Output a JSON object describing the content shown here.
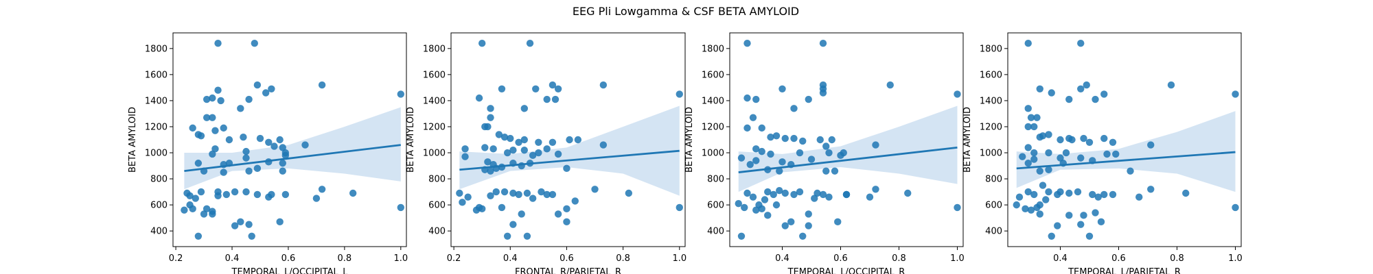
{
  "title": "EEG Pli Lowgamma & CSF BETA AMYLOID",
  "colors": {
    "points": "#1f77b4",
    "line": "#1f77b4",
    "band": "#c6dbef"
  },
  "chart_data": [
    {
      "type": "scatter",
      "xlabel": "TEMPORAL_L/OCCIPITAL_L",
      "ylabel": "BETA AMYLOID",
      "xlim": [
        0.19,
        1.02
      ],
      "ylim": [
        280,
        1920
      ],
      "xticks": [
        "0.2",
        "0.4",
        "0.6",
        "0.8",
        "1.0"
      ],
      "yticks": [
        "400",
        "600",
        "800",
        "1000",
        "1200",
        "1400",
        "1600",
        "1800"
      ],
      "regression": {
        "x": [
          0.23,
          1.0
        ],
        "y": [
          860,
          1060
        ]
      },
      "ci_band": {
        "x": [
          0.23,
          0.4,
          0.6,
          0.8,
          1.0
        ],
        "upper": [
          1000,
          1000,
          1060,
          1200,
          1350
        ],
        "lower": [
          720,
          860,
          880,
          840,
          780
        ]
      },
      "points": [
        [
          0.35,
          1840
        ],
        [
          0.48,
          1840
        ],
        [
          0.49,
          1520
        ],
        [
          0.52,
          1460
        ],
        [
          0.54,
          1490
        ],
        [
          0.72,
          1520
        ],
        [
          1.0,
          1450
        ],
        [
          0.31,
          1410
        ],
        [
          0.33,
          1420
        ],
        [
          0.35,
          1480
        ],
        [
          0.36,
          1400
        ],
        [
          0.43,
          1340
        ],
        [
          0.46,
          1410
        ],
        [
          0.26,
          1190
        ],
        [
          0.29,
          1130
        ],
        [
          0.31,
          1270
        ],
        [
          0.33,
          1270
        ],
        [
          0.34,
          1170
        ],
        [
          0.28,
          1140
        ],
        [
          0.37,
          1190
        ],
        [
          0.39,
          1100
        ],
        [
          0.44,
          1120
        ],
        [
          0.45,
          1010
        ],
        [
          0.5,
          1110
        ],
        [
          0.53,
          1080
        ],
        [
          0.55,
          1050
        ],
        [
          0.57,
          1100
        ],
        [
          0.58,
          1040
        ],
        [
          0.59,
          1000
        ],
        [
          0.66,
          1060
        ],
        [
          0.33,
          990
        ],
        [
          0.34,
          1030
        ],
        [
          0.37,
          910
        ],
        [
          0.39,
          920
        ],
        [
          0.45,
          960
        ],
        [
          0.49,
          880
        ],
        [
          0.53,
          930
        ],
        [
          0.58,
          920
        ],
        [
          0.59,
          980
        ],
        [
          0.28,
          920
        ],
        [
          0.3,
          860
        ],
        [
          0.58,
          860
        ],
        [
          0.37,
          850
        ],
        [
          0.24,
          690
        ],
        [
          0.25,
          670
        ],
        [
          0.27,
          650
        ],
        [
          0.29,
          700
        ],
        [
          0.31,
          570
        ],
        [
          0.33,
          550
        ],
        [
          0.33,
          530
        ],
        [
          0.35,
          700
        ],
        [
          0.38,
          680
        ],
        [
          0.41,
          700
        ],
        [
          0.45,
          700
        ],
        [
          0.46,
          450
        ],
        [
          0.43,
          470
        ],
        [
          0.47,
          360
        ],
        [
          0.53,
          660
        ],
        [
          0.54,
          680
        ],
        [
          0.57,
          470
        ],
        [
          0.59,
          680
        ],
        [
          0.7,
          650
        ],
        [
          0.72,
          720
        ],
        [
          0.83,
          690
        ],
        [
          1.0,
          580
        ],
        [
          0.23,
          560
        ],
        [
          0.25,
          600
        ],
        [
          0.28,
          360
        ],
        [
          0.3,
          530
        ],
        [
          0.26,
          570
        ],
        [
          0.41,
          440
        ],
        [
          0.35,
          670
        ],
        [
          0.46,
          860
        ],
        [
          0.49,
          680
        ]
      ]
    },
    {
      "type": "scatter",
      "xlabel": "FRONTAL_R/PARIETAL_R",
      "ylabel": "BETA AMYLOID",
      "xlim": [
        0.19,
        1.02
      ],
      "ylim": [
        280,
        1920
      ],
      "xticks": [
        "0.2",
        "0.4",
        "0.6",
        "0.8",
        "1.0"
      ],
      "yticks": [
        "400",
        "600",
        "800",
        "1000",
        "1200",
        "1400",
        "1600",
        "1800"
      ],
      "regression": {
        "x": [
          0.22,
          1.0
        ],
        "y": [
          870,
          1015
        ]
      },
      "ci_band": {
        "x": [
          0.22,
          0.4,
          0.6,
          0.8,
          1.0
        ],
        "upper": [
          1010,
          990,
          1040,
          1200,
          1360
        ],
        "lower": [
          720,
          860,
          890,
          840,
          670
        ]
      },
      "points": [
        [
          0.3,
          1840
        ],
        [
          0.47,
          1840
        ],
        [
          0.73,
          1520
        ],
        [
          1.0,
          1450
        ],
        [
          0.49,
          1490
        ],
        [
          0.55,
          1520
        ],
        [
          0.57,
          1490
        ],
        [
          0.29,
          1420
        ],
        [
          0.37,
          1490
        ],
        [
          0.53,
          1410
        ],
        [
          0.56,
          1410
        ],
        [
          0.45,
          1340
        ],
        [
          0.33,
          1340
        ],
        [
          0.33,
          1270
        ],
        [
          0.31,
          1200
        ],
        [
          0.32,
          1200
        ],
        [
          0.36,
          1140
        ],
        [
          0.38,
          1120
        ],
        [
          0.4,
          1110
        ],
        [
          0.43,
          1080
        ],
        [
          0.45,
          1100
        ],
        [
          0.5,
          1080
        ],
        [
          0.55,
          1080
        ],
        [
          0.61,
          1100
        ],
        [
          0.64,
          1100
        ],
        [
          0.73,
          1060
        ],
        [
          0.24,
          1030
        ],
        [
          0.31,
          1040
        ],
        [
          0.34,
          1030
        ],
        [
          0.39,
          1000
        ],
        [
          0.41,
          1020
        ],
        [
          0.45,
          1020
        ],
        [
          0.48,
          980
        ],
        [
          0.5,
          1000
        ],
        [
          0.53,
          1030
        ],
        [
          0.57,
          990
        ],
        [
          0.24,
          970
        ],
        [
          0.32,
          930
        ],
        [
          0.34,
          910
        ],
        [
          0.37,
          890
        ],
        [
          0.41,
          920
        ],
        [
          0.47,
          920
        ],
        [
          0.31,
          870
        ],
        [
          0.33,
          860
        ],
        [
          0.35,
          880
        ],
        [
          0.44,
          900
        ],
        [
          0.6,
          880
        ],
        [
          0.22,
          690
        ],
        [
          0.23,
          620
        ],
        [
          0.25,
          660
        ],
        [
          0.28,
          560
        ],
        [
          0.3,
          570
        ],
        [
          0.33,
          670
        ],
        [
          0.35,
          700
        ],
        [
          0.38,
          700
        ],
        [
          0.41,
          690
        ],
        [
          0.43,
          680
        ],
        [
          0.46,
          690
        ],
        [
          0.48,
          650
        ],
        [
          0.51,
          700
        ],
        [
          0.55,
          680
        ],
        [
          0.57,
          530
        ],
        [
          0.6,
          470
        ],
        [
          0.63,
          630
        ],
        [
          0.7,
          720
        ],
        [
          0.82,
          690
        ],
        [
          1.0,
          580
        ],
        [
          0.29,
          580
        ],
        [
          0.37,
          580
        ],
        [
          0.39,
          360
        ],
        [
          0.41,
          450
        ],
        [
          0.44,
          530
        ],
        [
          0.46,
          360
        ],
        [
          0.53,
          680
        ],
        [
          0.6,
          570
        ]
      ]
    },
    {
      "type": "scatter",
      "xlabel": "TEMPORAL_L/OCCIPITAL_R",
      "ylabel": "BETA AMYLOID",
      "xlim": [
        0.22,
        1.02
      ],
      "ylim": [
        280,
        1920
      ],
      "xticks": [
        "0.4",
        "0.6",
        "0.8",
        "1.0"
      ],
      "yticks": [
        "400",
        "600",
        "800",
        "1000",
        "1200",
        "1400",
        "1600",
        "1800"
      ],
      "regression": {
        "x": [
          0.25,
          1.0
        ],
        "y": [
          850,
          1040
        ]
      },
      "ci_band": {
        "x": [
          0.25,
          0.4,
          0.6,
          0.8,
          1.0
        ],
        "upper": [
          1010,
          990,
          1050,
          1200,
          1360
        ],
        "lower": [
          700,
          850,
          890,
          840,
          760
        ]
      },
      "points": [
        [
          0.28,
          1840
        ],
        [
          0.54,
          1840
        ],
        [
          0.4,
          1490
        ],
        [
          0.54,
          1520
        ],
        [
          0.54,
          1490
        ],
        [
          0.77,
          1520
        ],
        [
          1.0,
          1450
        ],
        [
          0.28,
          1420
        ],
        [
          0.31,
          1410
        ],
        [
          0.49,
          1410
        ],
        [
          0.54,
          1460
        ],
        [
          0.44,
          1340
        ],
        [
          0.3,
          1270
        ],
        [
          0.28,
          1190
        ],
        [
          0.33,
          1190
        ],
        [
          0.36,
          1120
        ],
        [
          0.38,
          1130
        ],
        [
          0.41,
          1110
        ],
        [
          0.44,
          1110
        ],
        [
          0.47,
          1090
        ],
        [
          0.53,
          1100
        ],
        [
          0.55,
          1050
        ],
        [
          0.57,
          1100
        ],
        [
          0.61,
          1000
        ],
        [
          0.6,
          980
        ],
        [
          0.72,
          1060
        ],
        [
          0.26,
          960
        ],
        [
          0.31,
          1030
        ],
        [
          0.33,
          1010
        ],
        [
          0.36,
          990
        ],
        [
          0.4,
          930
        ],
        [
          0.43,
          910
        ],
        [
          0.46,
          1000
        ],
        [
          0.5,
          950
        ],
        [
          0.56,
          1000
        ],
        [
          0.29,
          910
        ],
        [
          0.31,
          940
        ],
        [
          0.35,
          870
        ],
        [
          0.39,
          860
        ],
        [
          0.55,
          860
        ],
        [
          0.58,
          860
        ],
        [
          0.62,
          680
        ],
        [
          0.25,
          610
        ],
        [
          0.27,
          580
        ],
        [
          0.28,
          690
        ],
        [
          0.3,
          660
        ],
        [
          0.32,
          600
        ],
        [
          0.34,
          640
        ],
        [
          0.35,
          700
        ],
        [
          0.37,
          680
        ],
        [
          0.39,
          710
        ],
        [
          0.41,
          690
        ],
        [
          0.44,
          680
        ],
        [
          0.46,
          700
        ],
        [
          0.49,
          530
        ],
        [
          0.51,
          650
        ],
        [
          0.54,
          680
        ],
        [
          0.59,
          470
        ],
        [
          0.62,
          680
        ],
        [
          0.7,
          660
        ],
        [
          0.72,
          720
        ],
        [
          0.83,
          690
        ],
        [
          1.0,
          580
        ],
        [
          0.26,
          360
        ],
        [
          0.31,
          560
        ],
        [
          0.33,
          570
        ],
        [
          0.35,
          520
        ],
        [
          0.38,
          600
        ],
        [
          0.41,
          440
        ],
        [
          0.43,
          470
        ],
        [
          0.47,
          360
        ],
        [
          0.49,
          440
        ],
        [
          0.52,
          690
        ],
        [
          0.56,
          660
        ]
      ]
    },
    {
      "type": "scatter",
      "xlabel": "TEMPORAL_L/PARIETAL_R",
      "ylabel": "BETA AMYLOID",
      "xlim": [
        0.22,
        1.02
      ],
      "ylim": [
        280,
        1920
      ],
      "xticks": [
        "0.4",
        "0.6",
        "0.8",
        "1.0"
      ],
      "yticks": [
        "400",
        "600",
        "800",
        "1000",
        "1200",
        "1400",
        "1600",
        "1800"
      ],
      "regression": {
        "x": [
          0.25,
          1.0
        ],
        "y": [
          880,
          1005
        ]
      },
      "ci_band": {
        "x": [
          0.25,
          0.4,
          0.6,
          0.8,
          1.0
        ],
        "upper": [
          1010,
          990,
          1030,
          1160,
          1320
        ],
        "lower": [
          730,
          870,
          880,
          840,
          700
        ]
      },
      "points": [
        [
          0.29,
          1840
        ],
        [
          0.47,
          1840
        ],
        [
          0.49,
          1520
        ],
        [
          0.55,
          1450
        ],
        [
          0.78,
          1520
        ],
        [
          1.0,
          1450
        ],
        [
          0.33,
          1490
        ],
        [
          0.37,
          1460
        ],
        [
          0.43,
          1410
        ],
        [
          0.47,
          1490
        ],
        [
          0.52,
          1410
        ],
        [
          0.29,
          1340
        ],
        [
          0.3,
          1270
        ],
        [
          0.32,
          1270
        ],
        [
          0.29,
          1200
        ],
        [
          0.31,
          1200
        ],
        [
          0.33,
          1120
        ],
        [
          0.34,
          1130
        ],
        [
          0.36,
          1140
        ],
        [
          0.4,
          1100
        ],
        [
          0.43,
          1110
        ],
        [
          0.44,
          1100
        ],
        [
          0.48,
          1110
        ],
        [
          0.5,
          1080
        ],
        [
          0.55,
          1110
        ],
        [
          0.58,
          1080
        ],
        [
          0.71,
          1060
        ],
        [
          0.27,
          970
        ],
        [
          0.29,
          1040
        ],
        [
          0.31,
          1000
        ],
        [
          0.36,
          1000
        ],
        [
          0.4,
          960
        ],
        [
          0.42,
          1000
        ],
        [
          0.47,
          960
        ],
        [
          0.51,
          940
        ],
        [
          0.56,
          990
        ],
        [
          0.59,
          990
        ],
        [
          0.29,
          920
        ],
        [
          0.31,
          950
        ],
        [
          0.33,
          860
        ],
        [
          0.36,
          870
        ],
        [
          0.41,
          920
        ],
        [
          0.64,
          860
        ],
        [
          0.25,
          600
        ],
        [
          0.26,
          660
        ],
        [
          0.28,
          570
        ],
        [
          0.29,
          700
        ],
        [
          0.31,
          680
        ],
        [
          0.33,
          600
        ],
        [
          0.35,
          640
        ],
        [
          0.36,
          700
        ],
        [
          0.39,
          680
        ],
        [
          0.4,
          700
        ],
        [
          0.43,
          690
        ],
        [
          0.46,
          700
        ],
        [
          0.48,
          520
        ],
        [
          0.51,
          680
        ],
        [
          0.53,
          660
        ],
        [
          0.55,
          680
        ],
        [
          0.58,
          680
        ],
        [
          0.67,
          660
        ],
        [
          0.71,
          720
        ],
        [
          0.83,
          690
        ],
        [
          1.0,
          580
        ],
        [
          0.3,
          560
        ],
        [
          0.33,
          530
        ],
        [
          0.34,
          750
        ],
        [
          0.37,
          360
        ],
        [
          0.39,
          440
        ],
        [
          0.43,
          520
        ],
        [
          0.47,
          450
        ],
        [
          0.5,
          360
        ],
        [
          0.52,
          540
        ],
        [
          0.54,
          470
        ],
        [
          0.32,
          580
        ]
      ]
    }
  ]
}
